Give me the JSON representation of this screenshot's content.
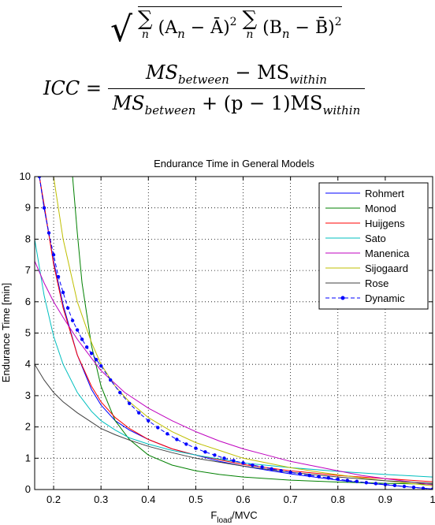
{
  "equations": {
    "pearson_denominator": {
      "sum_index": "n",
      "term_a": "(A",
      "sub_a": "n",
      "mean_a": " − Ā)",
      "term_b": "(B",
      "sub_b": "n",
      "mean_b": " − B̄)",
      "power": "2"
    },
    "icc": {
      "lhs": "ICC =",
      "num_a": "MS",
      "num_a_sub": "between",
      "num_op": " − MS",
      "num_b_sub": "within",
      "den_a": "MS",
      "den_a_sub": "between",
      "den_op": " + (p − 1)MS",
      "den_b_sub": "within"
    }
  },
  "chart_data": {
    "type": "line",
    "title": "Endurance Time in General Models",
    "xlabel_main": "F",
    "xlabel_sub": "load",
    "xlabel_rest": "/MVC",
    "ylabel": "Endurance Time [min]",
    "xlim": [
      0.16,
      1.0
    ],
    "ylim": [
      0,
      10
    ],
    "xticks": [
      0.2,
      0.3,
      0.4,
      0.5,
      0.6,
      0.7,
      0.8,
      0.9,
      1
    ],
    "xtick_labels": [
      "0.2",
      "0.3",
      "0.4",
      "0.5",
      "0.6",
      "0.7",
      "0.8",
      "0.9",
      "1"
    ],
    "yticks": [
      0,
      1,
      2,
      3,
      4,
      5,
      6,
      7,
      8,
      9,
      10
    ],
    "ytick_labels": [
      "0",
      "1",
      "2",
      "3",
      "4",
      "5",
      "6",
      "7",
      "8",
      "9",
      "10"
    ],
    "grid": true,
    "grid_style": "dotted",
    "legend_position": "top-right",
    "series": [
      {
        "name": "Rohmert",
        "color": "#0000ff",
        "style": "solid",
        "x": [
          0.17,
          0.18,
          0.2,
          0.22,
          0.25,
          0.28,
          0.3,
          0.33,
          0.36,
          0.4,
          0.45,
          0.5,
          0.55,
          0.6,
          0.65,
          0.7,
          0.75,
          0.8,
          0.85,
          0.9,
          0.95,
          1.0
        ],
        "y": [
          10.0,
          9.0,
          7.3,
          5.9,
          4.3,
          3.2,
          2.7,
          2.2,
          1.9,
          1.6,
          1.3,
          1.1,
          0.9,
          0.75,
          0.62,
          0.5,
          0.4,
          0.3,
          0.22,
          0.15,
          0.08,
          0.02
        ]
      },
      {
        "name": "Monod",
        "color": "#008000",
        "style": "solid",
        "x": [
          0.24,
          0.25,
          0.26,
          0.28,
          0.3,
          0.33,
          0.36,
          0.4,
          0.45,
          0.5,
          0.55,
          0.6,
          0.7,
          0.8,
          0.9,
          1.0
        ],
        "y": [
          10.0,
          8.2,
          6.6,
          4.6,
          3.3,
          2.2,
          1.6,
          1.1,
          0.78,
          0.6,
          0.48,
          0.4,
          0.3,
          0.24,
          0.2,
          0.17
        ]
      },
      {
        "name": "Huijgens",
        "color": "#ff0000",
        "style": "solid",
        "x": [
          0.17,
          0.18,
          0.2,
          0.22,
          0.25,
          0.28,
          0.3,
          0.33,
          0.36,
          0.4,
          0.45,
          0.5,
          0.6,
          0.7,
          0.8,
          0.9,
          1.0
        ],
        "y": [
          10.0,
          9.1,
          7.2,
          5.8,
          4.3,
          3.3,
          2.8,
          2.3,
          1.95,
          1.6,
          1.3,
          1.1,
          0.8,
          0.6,
          0.45,
          0.35,
          0.25
        ]
      },
      {
        "name": "Sato",
        "color": "#00bfbf",
        "style": "solid",
        "x": [
          0.16,
          0.18,
          0.2,
          0.22,
          0.25,
          0.28,
          0.3,
          0.33,
          0.36,
          0.4,
          0.45,
          0.5,
          0.6,
          0.7,
          0.8,
          0.9,
          1.0
        ],
        "y": [
          8.0,
          6.2,
          4.9,
          4.0,
          3.1,
          2.5,
          2.2,
          1.9,
          1.65,
          1.45,
          1.25,
          1.1,
          0.85,
          0.7,
          0.58,
          0.48,
          0.4
        ]
      },
      {
        "name": "Manenica",
        "color": "#bf00bf",
        "style": "solid",
        "x": [
          0.16,
          0.18,
          0.2,
          0.22,
          0.25,
          0.28,
          0.3,
          0.35,
          0.4,
          0.45,
          0.5,
          0.55,
          0.6,
          0.65,
          0.7,
          0.75,
          0.8,
          0.85,
          0.9,
          0.95,
          1.0
        ],
        "y": [
          7.3,
          6.6,
          6.0,
          5.5,
          4.8,
          4.2,
          3.8,
          3.1,
          2.6,
          2.2,
          1.85,
          1.55,
          1.3,
          1.1,
          0.9,
          0.75,
          0.6,
          0.45,
          0.35,
          0.25,
          0.15
        ]
      },
      {
        "name": "Sijogaard",
        "color": "#bfbf00",
        "style": "solid",
        "x": [
          0.2,
          0.22,
          0.25,
          0.28,
          0.3,
          0.33,
          0.36,
          0.4,
          0.45,
          0.5,
          0.55,
          0.6,
          0.65,
          0.7,
          0.75,
          0.8,
          0.85,
          0.9,
          0.95,
          1.0
        ],
        "y": [
          10.0,
          8.0,
          6.0,
          4.7,
          4.0,
          3.3,
          2.8,
          2.3,
          1.85,
          1.5,
          1.25,
          1.0,
          0.85,
          0.7,
          0.58,
          0.47,
          0.37,
          0.28,
          0.2,
          0.12
        ]
      },
      {
        "name": "Rose",
        "color": "#404040",
        "style": "solid",
        "x": [
          0.16,
          0.18,
          0.2,
          0.22,
          0.25,
          0.28,
          0.3,
          0.33,
          0.36,
          0.4,
          0.45,
          0.5,
          0.6,
          0.7,
          0.8,
          0.9,
          1.0
        ],
        "y": [
          4.0,
          3.5,
          3.1,
          2.8,
          2.45,
          2.15,
          1.95,
          1.75,
          1.58,
          1.38,
          1.18,
          1.0,
          0.75,
          0.55,
          0.4,
          0.28,
          0.2
        ]
      },
      {
        "name": "Dynamic",
        "color": "#0000ff",
        "style": "dashed",
        "marker": "dot",
        "x": [
          0.17,
          0.18,
          0.19,
          0.2,
          0.21,
          0.22,
          0.23,
          0.24,
          0.25,
          0.26,
          0.27,
          0.28,
          0.29,
          0.3,
          0.32,
          0.34,
          0.36,
          0.38,
          0.4,
          0.42,
          0.44,
          0.46,
          0.48,
          0.5,
          0.52,
          0.54,
          0.56,
          0.58,
          0.6,
          0.62,
          0.64,
          0.66,
          0.68,
          0.7,
          0.72,
          0.74,
          0.76,
          0.78,
          0.8,
          0.82,
          0.84,
          0.86,
          0.88,
          0.9,
          0.92,
          0.94,
          0.96,
          0.98,
          1.0
        ],
        "y": [
          10.0,
          9.0,
          8.2,
          7.5,
          6.8,
          6.3,
          5.8,
          5.4,
          5.1,
          4.8,
          4.55,
          4.35,
          4.15,
          3.95,
          3.5,
          3.1,
          2.75,
          2.45,
          2.2,
          1.98,
          1.78,
          1.6,
          1.45,
          1.32,
          1.2,
          1.1,
          1.0,
          0.92,
          0.85,
          0.78,
          0.72,
          0.66,
          0.6,
          0.55,
          0.5,
          0.45,
          0.41,
          0.37,
          0.33,
          0.29,
          0.26,
          0.22,
          0.19,
          0.16,
          0.13,
          0.1,
          0.07,
          0.04,
          0.01
        ]
      }
    ]
  }
}
